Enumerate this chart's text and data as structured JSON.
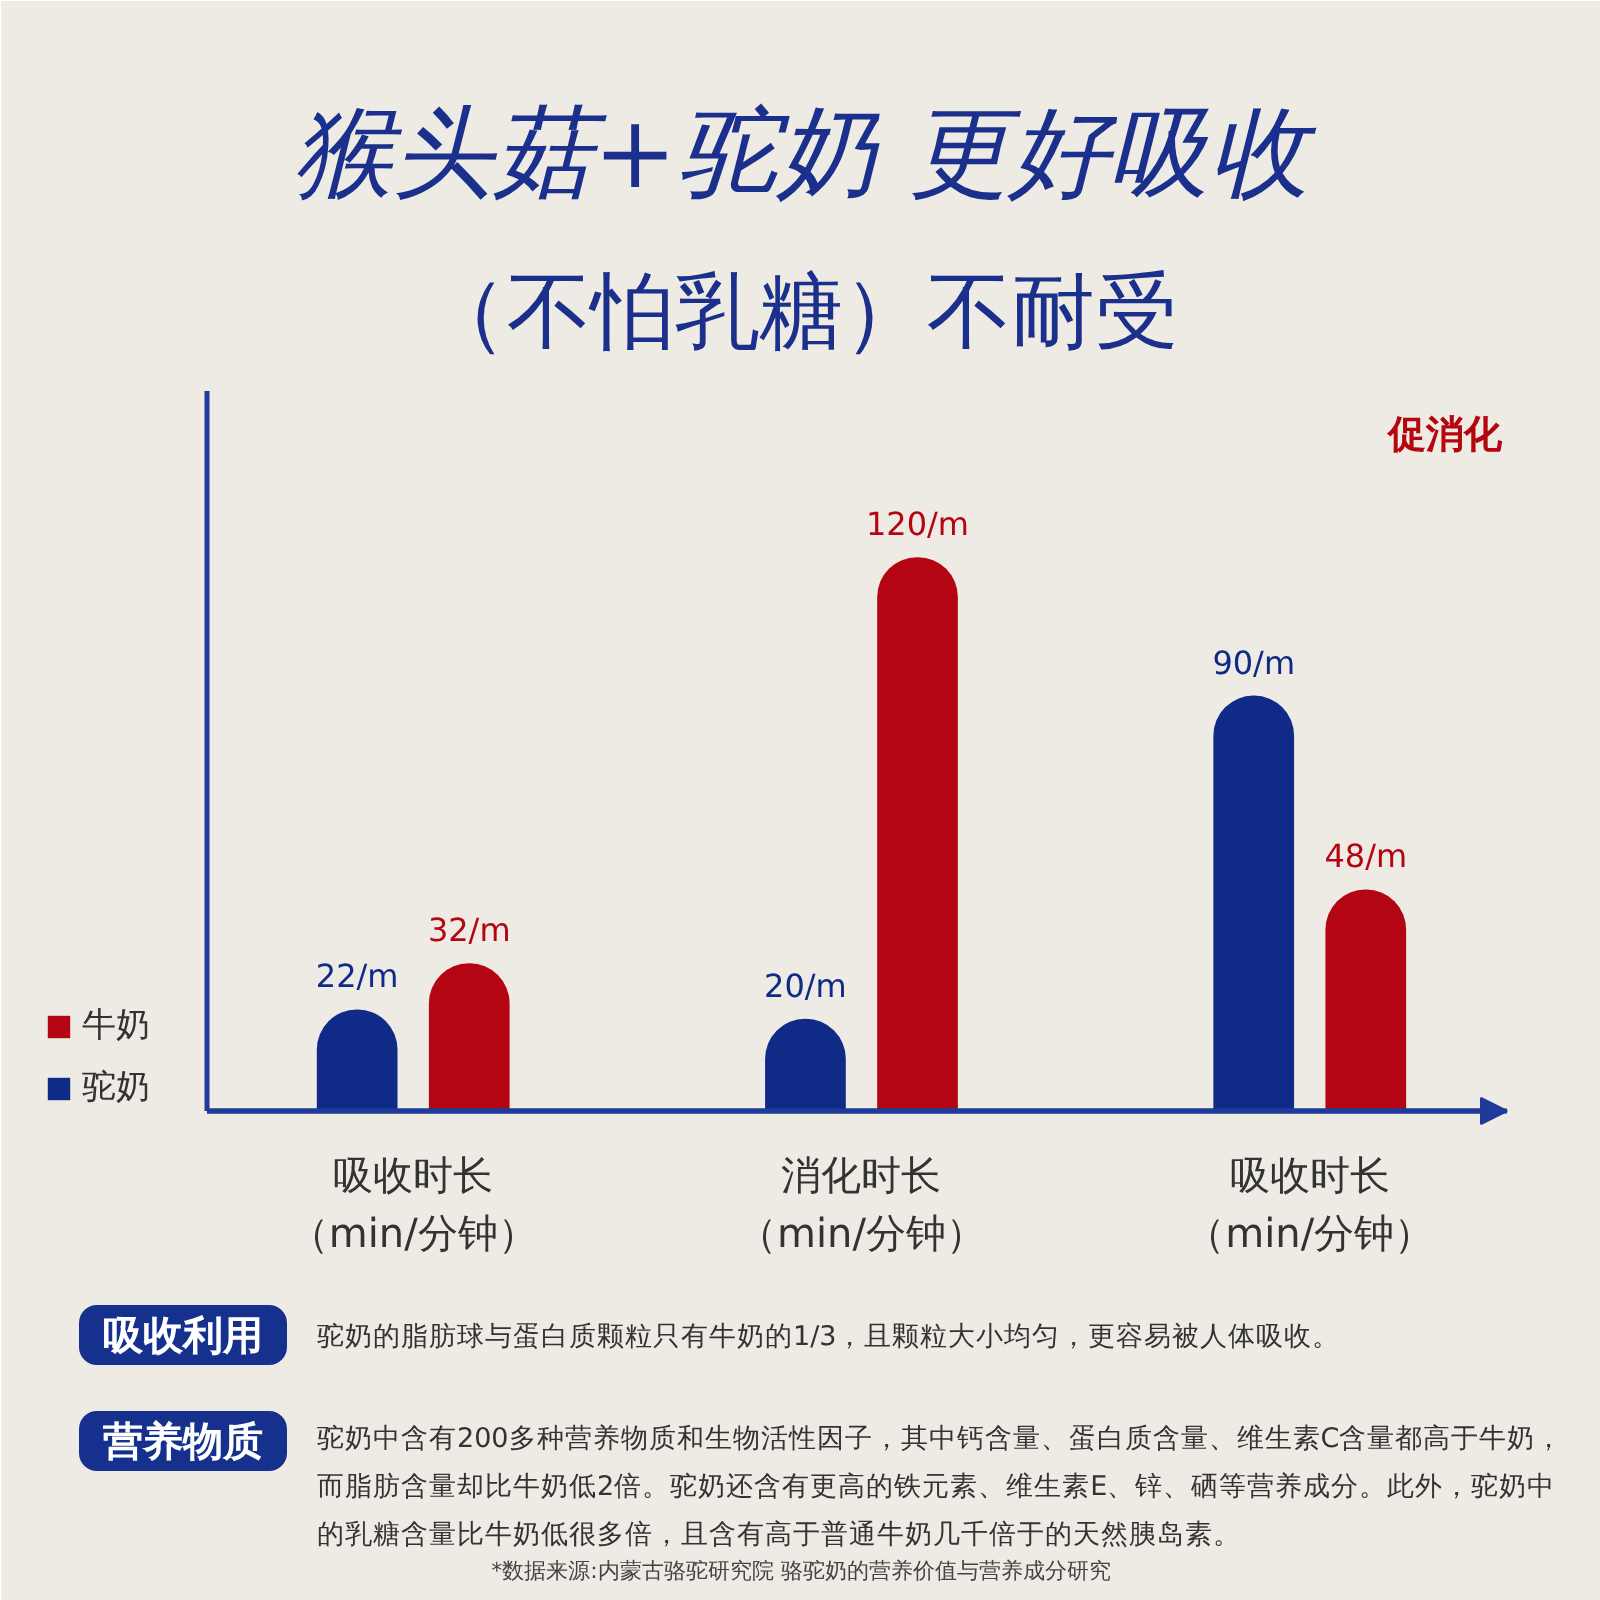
{
  "chart_data": {
    "type": "bar",
    "title": "猴头菇+驼奶 更好吸收",
    "subtitle": "（不怕乳糖）不耐受",
    "categories": [
      "吸收时长（min/分钟）",
      "消化时长（min/分钟）",
      "吸收时长（min/分钟）"
    ],
    "series": [
      {
        "name": "驼奶",
        "color": "#0f2a87",
        "values": [
          22,
          20,
          90
        ],
        "value_labels": [
          "22/m",
          "20/m",
          "90/m"
        ]
      },
      {
        "name": "牛奶",
        "color": "#b40512",
        "values": [
          32,
          120,
          48
        ],
        "value_labels": [
          "32/m",
          "120/m",
          "48/m"
        ]
      }
    ],
    "legend": "left",
    "tick_labels": "x",
    "annotations": [
      "促消化",
      "吸收利用",
      "驼奶的脂肪球与蛋白质颗粒只有牛奶的1/3，且颗粒大小均匀，更容易被人体吸收。",
      "营养物质",
      "驼奶中含有200多种营养物质和生物活性因子，其中钙含量、蛋白质含量、维生素C含量都高于牛奶，而脂肪含量却比牛奶低2倍。驼奶还含有更高的铁元素、维生素E、锌、硒等营养成分。此外，驼奶中的乳糖含量比牛奶低很多倍，且含有高于普通牛奶几千倍于的天然胰岛素。",
      "*数据来源:内蒙古骆驼研究院 骆驼奶的营养价值与营养成分研究"
    ]
  }
}
